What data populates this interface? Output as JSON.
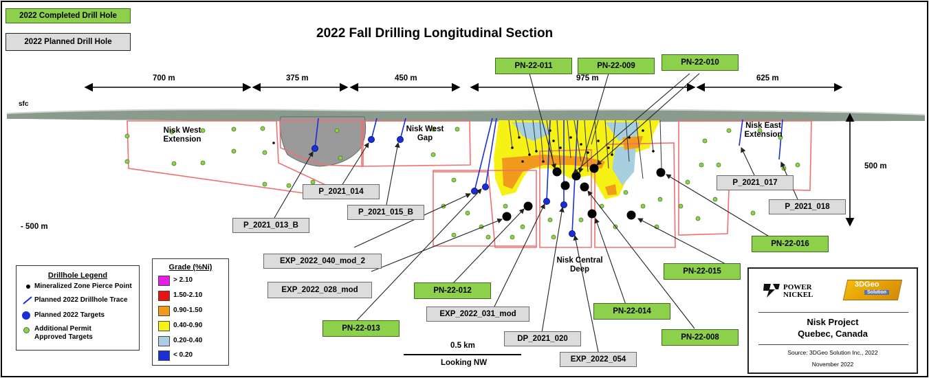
{
  "title": "2022 Fall Drilling Longitudinal Section",
  "header_boxes": {
    "completed": "2022 Completed Drill Hole",
    "planned": "2022 Planned Drill Hole"
  },
  "dimensions": {
    "d1": "700 m",
    "d2": "375 m",
    "d3": "450 m",
    "d4": "975 m",
    "d5": "625 m",
    "vertical": "500 m",
    "depth": "- 500 m",
    "surface": "sfc"
  },
  "zones": {
    "west_ext": "Nisk West Extension",
    "west_gap": "Nisk West Gap",
    "east_ext": "Nisk East Extension",
    "central_deep": "Nisk Central Deep"
  },
  "completed_holes": {
    "pn011": "PN-22-011",
    "pn009": "PN-22-009",
    "pn010": "PN-22-010",
    "pn016": "PN-22-016",
    "pn015": "PN-22-015",
    "pn012": "PN-22-012",
    "pn014": "PN-22-014",
    "pn013": "PN-22-013",
    "pn008": "PN-22-008"
  },
  "planned_holes": {
    "p2021_014": "P_2021_014",
    "p2021_013b": "P_2021_013_B",
    "p2021_015b": "P_2021_015_B",
    "p2021_017": "P_2021_017",
    "p2021_018": "P_2021_018",
    "exp040": "EXP_2022_040_mod_2",
    "exp028": "EXP_2022_028_mod",
    "exp031": "EXP_2022_031_mod",
    "dp020": "DP_2021_020",
    "exp054": "EXP_2022_054"
  },
  "drillhole_legend": {
    "title": "Drillhole Legend",
    "items": [
      "Mineralized Zone Pierce Point",
      "Planned 2022 Drillhole Trace",
      "Planned 2022 Targets",
      "Additional Permit Approved Targets"
    ]
  },
  "grade_legend": {
    "title": "Grade (%Ni)",
    "items": [
      {
        "label": "> 2.10",
        "color": "#e61ee6"
      },
      {
        "label": "1.50-2.10",
        "color": "#e61414"
      },
      {
        "label": "0.90-1.50",
        "color": "#f29a1c"
      },
      {
        "label": "0.40-0.90",
        "color": "#f7f215"
      },
      {
        "label": "0.20-0.40",
        "color": "#a8cfe0"
      },
      {
        "label": "< 0.20",
        "color": "#1a2fd6"
      }
    ]
  },
  "scale": {
    "distance": "0.5 km",
    "view": "Looking NW"
  },
  "info_panel": {
    "logo1": "POWER NICKEL",
    "logo2": "3DGeo",
    "logo2_sub": "Solution",
    "project": "Nisk Project",
    "location": "Quebec, Canada",
    "source": "Source: 3DGeo Solution Inc., 2022",
    "date": "November 2022"
  }
}
